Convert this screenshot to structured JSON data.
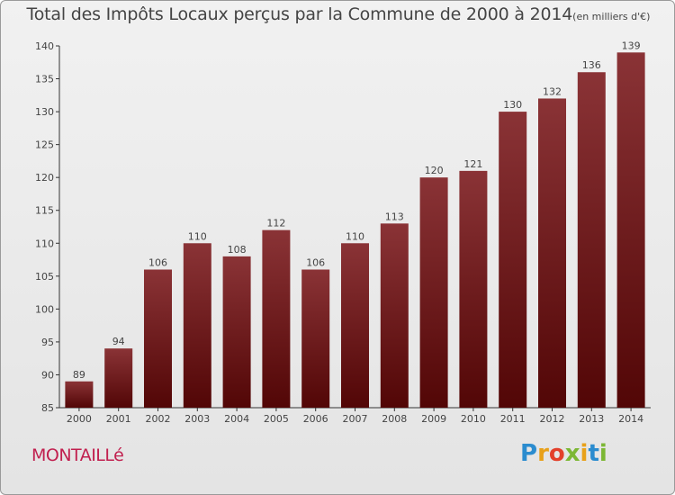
{
  "title": {
    "main": "Total des Impôts Locaux perçus par la Commune de 2000 à 2014",
    "unit": "(en milliers d'€)"
  },
  "commune": "MONTAILLé",
  "logo": {
    "text": "Proxiti",
    "letters": [
      "P",
      "r",
      "o",
      "x",
      "i",
      "t",
      "i"
    ],
    "colors": [
      "#2b8ccf",
      "#e8a11a",
      "#e3402b",
      "#7cb734",
      "#e8a11a",
      "#2b8ccf",
      "#7cb734"
    ]
  },
  "colors": {
    "bar_top": "#8a3336",
    "bar_bottom": "#520606",
    "axis": "#333333",
    "text": "#444444"
  },
  "chart_data": {
    "type": "bar",
    "categories": [
      "2000",
      "2001",
      "2002",
      "2003",
      "2004",
      "2005",
      "2006",
      "2007",
      "2008",
      "2009",
      "2010",
      "2011",
      "2012",
      "2013",
      "2014"
    ],
    "values": [
      89,
      94,
      106,
      110,
      108,
      112,
      106,
      110,
      113,
      120,
      121,
      130,
      132,
      136,
      139
    ],
    "ylim": [
      85,
      140
    ],
    "yticks": [
      85,
      90,
      95,
      100,
      105,
      110,
      115,
      120,
      125,
      130,
      135,
      140
    ],
    "data_labels": true,
    "xlabel": "",
    "ylabel": ""
  }
}
